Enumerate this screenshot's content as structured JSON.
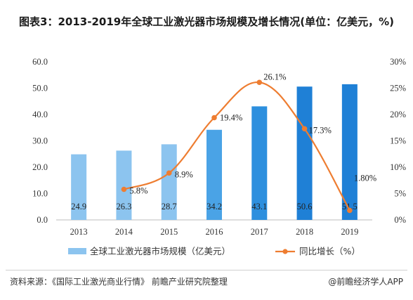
{
  "title": "图表3：2013-2019年全球工业激光器市场规模及增长情况(单位：亿美元，%)",
  "footer": {
    "source": "资料来源：《国际工业激光商业行情》 前瞻产业研究院整理",
    "brand": "@前瞻经济学人APP"
  },
  "chart_data": {
    "type": "bar",
    "categories": [
      "2013",
      "2014",
      "2015",
      "2016",
      "2017",
      "2018",
      "2019"
    ],
    "series": [
      {
        "name": "全球工业激光器市场规模（亿美元）",
        "type": "bar",
        "axis": "left",
        "values": [
          24.9,
          26.3,
          28.7,
          34.2,
          43.1,
          50.6,
          51.5
        ],
        "labels": [
          "24.9",
          "26.3",
          "28.7",
          "34.2",
          "43.1",
          "50.6",
          "51.5"
        ],
        "colors": [
          "#8cc4ef",
          "#8cc4ef",
          "#8cc4ef",
          "#4aa3e6",
          "#2d8fde",
          "#1f80d6",
          "#1f80d6"
        ]
      },
      {
        "name": "同比增长（%）",
        "type": "line",
        "axis": "right",
        "x": [
          "2014",
          "2015",
          "2016",
          "2017",
          "2018",
          "2019"
        ],
        "values": [
          5.8,
          8.9,
          19.4,
          26.1,
          17.3,
          1.8
        ],
        "labels": [
          "5.8%",
          "8.9%",
          "19.4%",
          "26.1%",
          "17.3%",
          "1.80%"
        ],
        "color": "#ee7d31"
      }
    ],
    "left_axis": {
      "ylim": [
        0,
        60
      ],
      "ticks": [
        "0.0",
        "10.0",
        "20.0",
        "30.0",
        "40.0",
        "50.0",
        "60.0"
      ]
    },
    "right_axis": {
      "ylim": [
        0,
        30
      ],
      "ticks": [
        "0%",
        "5%",
        "10%",
        "15%",
        "20%",
        "25%",
        "30%"
      ]
    },
    "grid": false,
    "legend": "bottom"
  }
}
